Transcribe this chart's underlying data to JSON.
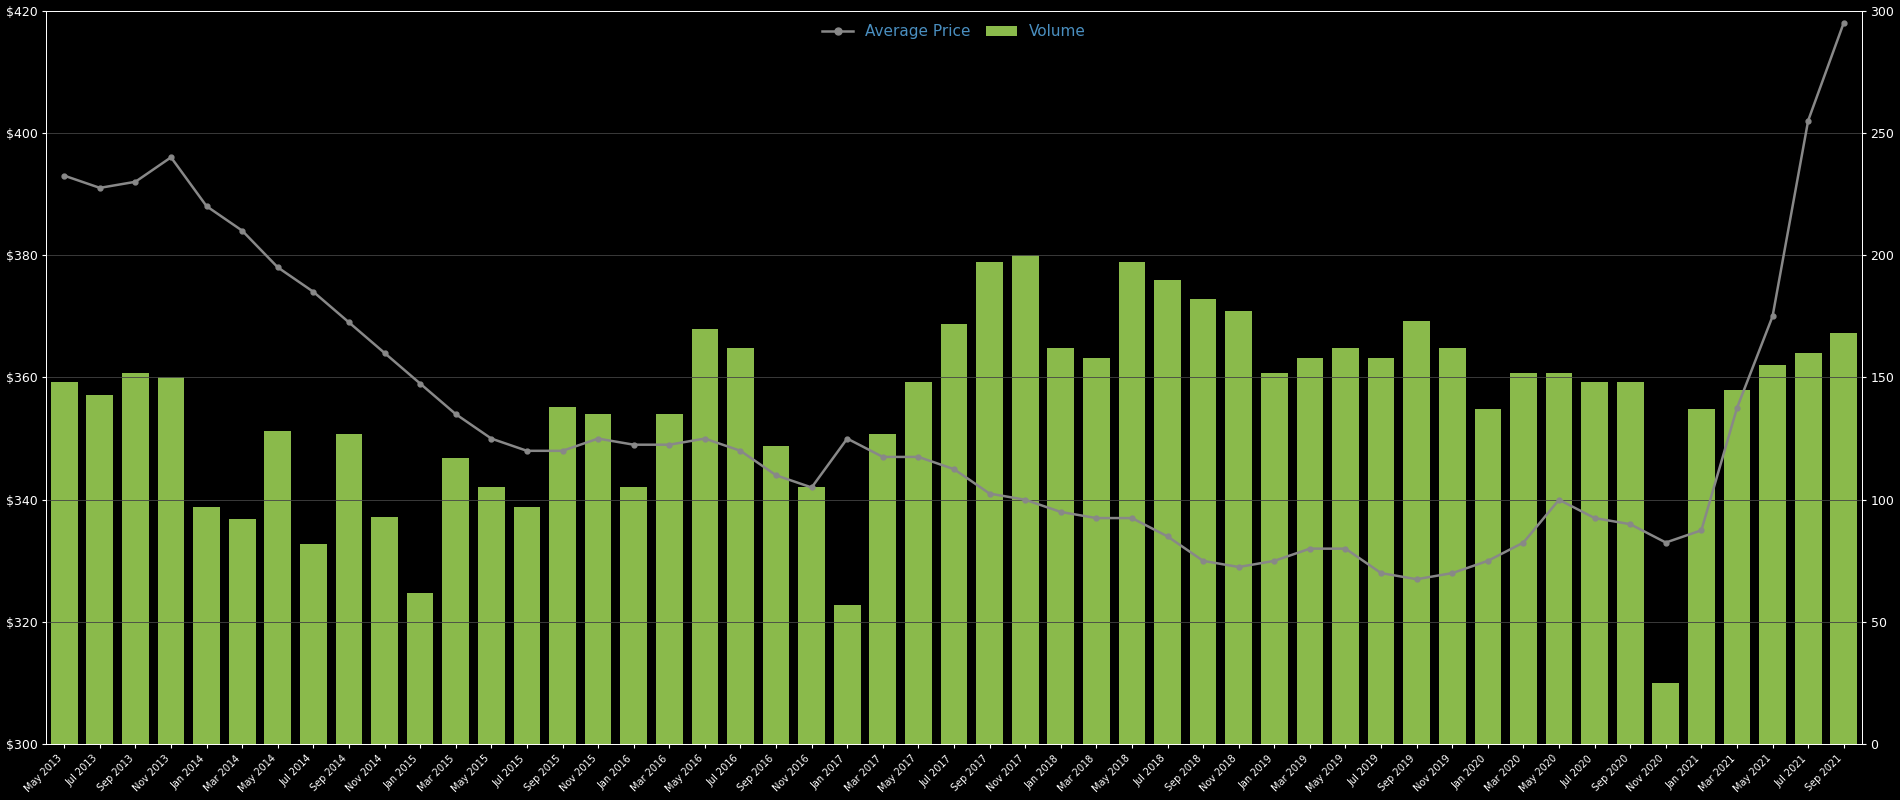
{
  "months": [
    "May 2013",
    "Jul 2013",
    "Sep 2013",
    "Nov 2013",
    "Jan 2014",
    "Mar 2014",
    "May 2014",
    "Jul 2014",
    "Sep 2014",
    "Nov 2014",
    "Jan 2015",
    "Mar 2015",
    "May 2015",
    "Jul 2015",
    "Sep 2015",
    "Nov 2015",
    "Jan 2016",
    "Mar 2016",
    "May 2016",
    "Jul 2016",
    "Sep 2016",
    "Nov 2016",
    "Jan 2017",
    "Mar 2017",
    "May 2017",
    "Jul 2017",
    "Sep 2017",
    "Nov 2017",
    "Jan 2018",
    "Mar 2018",
    "May 2018",
    "Jul 2018",
    "Sep 2018",
    "Nov 2018",
    "Jan 2019",
    "Mar 2019",
    "May 2019",
    "Jul 2019",
    "Sep 2019",
    "Nov 2019",
    "Jan 2020",
    "Mar 2020",
    "May 2020",
    "Jul 2020",
    "Sep 2020",
    "Nov 2020",
    "Jan 2021",
    "Mar 2021",
    "May 2021",
    "Jul 2021",
    "Sep 2021"
  ],
  "avg_price": [
    393,
    391,
    392,
    396,
    388,
    384,
    378,
    374,
    369,
    364,
    359,
    354,
    350,
    348,
    348,
    350,
    349,
    349,
    350,
    348,
    344,
    342,
    350,
    347,
    347,
    345,
    341,
    340,
    338,
    337,
    337,
    334,
    330,
    329,
    330,
    332,
    332,
    328,
    327,
    328,
    330,
    333,
    340,
    337,
    336,
    333,
    335,
    355,
    370,
    402,
    418
  ],
  "volume": [
    148,
    143,
    152,
    150,
    97,
    92,
    128,
    82,
    127,
    93,
    62,
    117,
    105,
    97,
    138,
    135,
    105,
    135,
    170,
    162,
    122,
    105,
    57,
    127,
    148,
    172,
    197,
    200,
    162,
    158,
    197,
    190,
    182,
    177,
    152,
    158,
    162,
    158,
    173,
    162,
    137,
    152,
    152,
    148,
    148,
    25,
    137,
    145,
    155,
    160,
    168
  ],
  "bar_color": "#8aba4b",
  "line_color": "#888888",
  "background_color": "#000000",
  "text_color": "#ffffff",
  "grid_color": "#444444",
  "legend_text_color": "#4a8fc0",
  "ylim_left": [
    300,
    420
  ],
  "ylim_right": [
    0,
    300
  ],
  "yticks_left": [
    300,
    320,
    340,
    360,
    380,
    400,
    420
  ],
  "yticks_right": [
    0,
    50,
    100,
    150,
    200,
    250,
    300
  ],
  "legend_labels": [
    "Average Price",
    "Volume"
  ],
  "figsize": [
    19.0,
    8.0
  ],
  "dpi": 100
}
